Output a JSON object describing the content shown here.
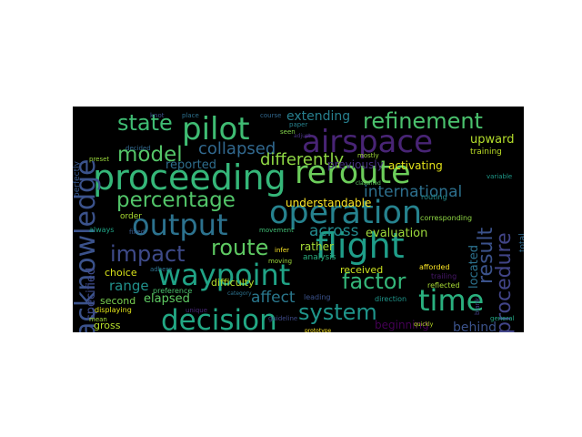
{
  "wordcloud": {
    "background": "#000000",
    "palette": "viridis",
    "words": [
      {
        "text": "airspace",
        "color": "#482475"
      },
      {
        "text": "proceeding",
        "color": "#35b779"
      },
      {
        "text": "reroute",
        "color": "#6ccd5a"
      },
      {
        "text": "pilot",
        "color": "#3fbc73"
      },
      {
        "text": "operation",
        "color": "#26828e"
      },
      {
        "text": "flight",
        "color": "#1f9e89"
      },
      {
        "text": "output",
        "color": "#2c728e"
      },
      {
        "text": "waypoint",
        "color": "#20a386"
      },
      {
        "text": "decision",
        "color": "#22a884"
      },
      {
        "text": "time",
        "color": "#2ab07f"
      },
      {
        "text": "acknowledge",
        "color": "#3b528b"
      },
      {
        "text": "refinement",
        "color": "#4ac16d"
      },
      {
        "text": "state",
        "color": "#3fbc73"
      },
      {
        "text": "model",
        "color": "#54c568"
      },
      {
        "text": "percentage",
        "color": "#52c569"
      },
      {
        "text": "impact",
        "color": "#3e4a89"
      },
      {
        "text": "route",
        "color": "#5ec962"
      },
      {
        "text": "system",
        "color": "#1f958b"
      },
      {
        "text": "factor",
        "color": "#34b679"
      },
      {
        "text": "procedure",
        "color": "#414487"
      },
      {
        "text": "result",
        "color": "#3b528b"
      },
      {
        "text": "collapsed",
        "color": "#31688e"
      },
      {
        "text": "differently",
        "color": "#8fd744"
      },
      {
        "text": "international",
        "color": "#2d708e"
      },
      {
        "text": "across",
        "color": "#238a8d"
      },
      {
        "text": "affect",
        "color": "#2a788e"
      },
      {
        "text": "evaluation",
        "color": "#9dd93b"
      },
      {
        "text": "extending",
        "color": "#277f8e"
      },
      {
        "text": "upward",
        "color": "#b5de2b"
      },
      {
        "text": "located",
        "color": "#2c728e"
      },
      {
        "text": "specified",
        "color": "#3e4a89"
      },
      {
        "text": "range",
        "color": "#21918c"
      },
      {
        "text": "elapsed",
        "color": "#5ec962"
      },
      {
        "text": "reported",
        "color": "#2e6e8e"
      },
      {
        "text": "behind",
        "color": "#3b528b"
      },
      {
        "text": "beginning",
        "color": "#440154"
      },
      {
        "text": "choice",
        "color": "#d8e219"
      },
      {
        "text": "received",
        "color": "#cae11f"
      },
      {
        "text": "second",
        "color": "#7ad151"
      },
      {
        "text": "gross",
        "color": "#b5de2b"
      },
      {
        "text": "rather",
        "color": "#a5db36"
      },
      {
        "text": "previously",
        "color": "#46327e"
      },
      {
        "text": "understandable",
        "color": "#fde725"
      },
      {
        "text": "activating",
        "color": "#e5e419"
      },
      {
        "text": "difficulty",
        "color": "#b5de2b"
      },
      {
        "text": "training",
        "color": "#bddf26"
      },
      {
        "text": "total",
        "color": "#306a8e"
      },
      {
        "text": "order",
        "color": "#aadc32"
      },
      {
        "text": "always",
        "color": "#20a486"
      },
      {
        "text": "perfectly",
        "color": "#38588c"
      },
      {
        "text": "knot",
        "color": "#3b528b"
      },
      {
        "text": "course",
        "color": "#31688e"
      },
      {
        "text": "place",
        "color": "#2d708e"
      },
      {
        "text": "seen",
        "color": "#84d44b"
      },
      {
        "text": "mostly",
        "color": "#a0da39"
      },
      {
        "text": "analysis",
        "color": "#2ab07f"
      },
      {
        "text": "afforded",
        "color": "#fde725"
      },
      {
        "text": "displaying",
        "color": "#e2e418"
      },
      {
        "text": "preference",
        "color": "#4ac16d"
      },
      {
        "text": "movement",
        "color": "#3fbc73"
      },
      {
        "text": "unique",
        "color": "#482878"
      },
      {
        "text": "trailing",
        "color": "#48186a"
      },
      {
        "text": "corresponding",
        "color": "#8fd744"
      },
      {
        "text": "leading",
        "color": "#3b528b"
      },
      {
        "text": "direction",
        "color": "#1f968b"
      },
      {
        "text": "reflected",
        "color": "#a8db34"
      },
      {
        "text": "routing",
        "color": "#228c8d"
      },
      {
        "text": "preset",
        "color": "#9bd93c"
      },
      {
        "text": "decided",
        "color": "#31688e"
      },
      {
        "text": "mean",
        "color": "#a5db36"
      },
      {
        "text": "adhere",
        "color": "#2d708e"
      },
      {
        "text": "fixed",
        "color": "#38598c"
      },
      {
        "text": "moving",
        "color": "#9dd93b"
      },
      {
        "text": "guideline",
        "color": "#3e4a89"
      },
      {
        "text": "category",
        "color": "#2c728e"
      },
      {
        "text": "general",
        "color": "#22a884"
      },
      {
        "text": "quickly",
        "color": "#bddf26"
      },
      {
        "text": "prototype",
        "color": "#fde725"
      },
      {
        "text": "infer",
        "color": "#fde725"
      },
      {
        "text": "paper",
        "color": "#26828e"
      },
      {
        "text": "classified",
        "color": "#5ec962"
      },
      {
        "text": "adjust",
        "color": "#46327e"
      },
      {
        "text": "variable",
        "color": "#1f9a8a"
      },
      {
        "text": "blank",
        "color": "#433e85"
      }
    ]
  }
}
